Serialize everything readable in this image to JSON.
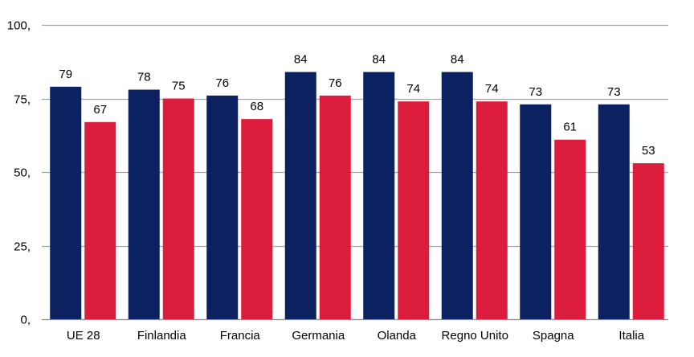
{
  "chart_data": {
    "type": "bar",
    "title": "",
    "xlabel": "",
    "ylabel": "",
    "ylim": [
      0,
      100
    ],
    "yticks": [
      0,
      25,
      50,
      75,
      100
    ],
    "ytick_labels": [
      "0,",
      "25,",
      "50,",
      "75,",
      "100,"
    ],
    "grid": true,
    "categories": [
      "UE 28",
      "Finlandia",
      "Francia",
      "Germania",
      "Olanda",
      "Regno Unito",
      "Spagna",
      "Italia"
    ],
    "series": [
      {
        "color": "#0b2160",
        "values": [
          79,
          78,
          76,
          84,
          84,
          84,
          73,
          73
        ]
      },
      {
        "color": "#dc1c3c",
        "values": [
          67,
          75,
          68,
          76,
          74,
          74,
          61,
          53
        ]
      }
    ],
    "data_labels": [
      [
        "79",
        "78",
        "76",
        "84",
        "84",
        "84",
        "73",
        "73"
      ],
      [
        "67",
        "75",
        "68",
        "76",
        "74",
        "74",
        "61",
        "53"
      ]
    ]
  }
}
